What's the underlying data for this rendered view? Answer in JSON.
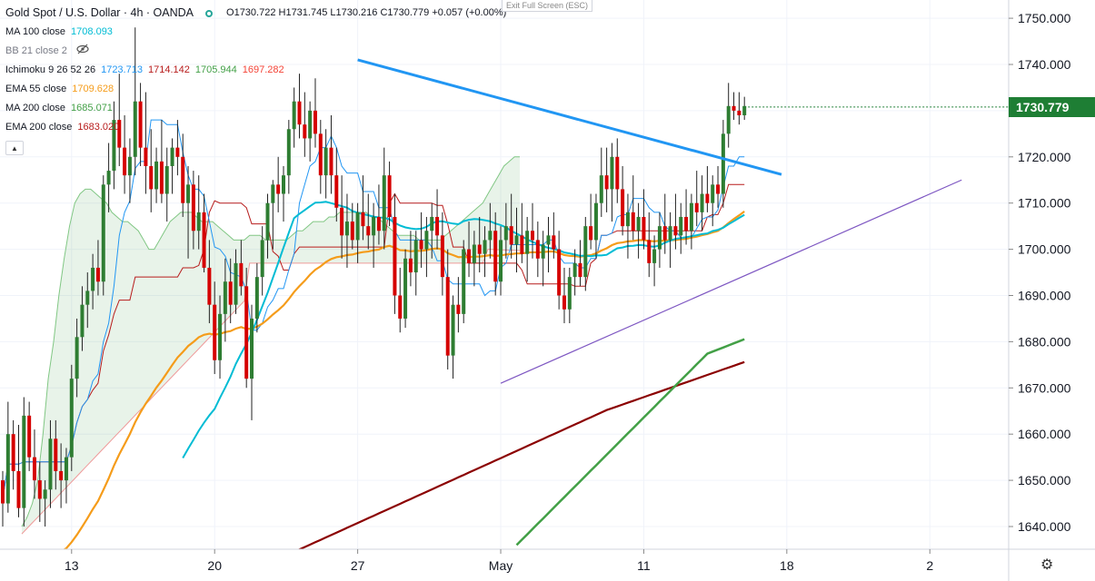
{
  "header": {
    "title": "Gold Spot / U.S. Dollar · 4h · OANDA",
    "ohlc": "O1730.722 H1731.745 L1730.216 C1730.779 +0.057 (+0.00%)",
    "exit_fullscreen": "Exit Full Screen (ESC)"
  },
  "indicators": [
    {
      "label": "MA 100 close",
      "value": "1708.093",
      "color": "#00bcd4"
    },
    {
      "label": "BB 21 close 2",
      "value": "",
      "color": "#787b86"
    },
    {
      "label": "Ichimoku 9 26 52 26",
      "values": [
        "1723.713",
        "1714.142",
        "1705.944",
        "1697.282"
      ],
      "colors": [
        "#2196f3",
        "#b71c1c",
        "#43a047",
        "#f44336"
      ]
    },
    {
      "label": "EMA 55 close",
      "value": "1709.628",
      "color": "#f59c1a"
    },
    {
      "label": "MA 200 close",
      "value": "1685.071",
      "color": "#43a047"
    },
    {
      "label": "EMA 200 close",
      "value": "1683.020",
      "color": "#b71c1c"
    }
  ],
  "last_price": "1730.779",
  "icons": {
    "visibility": "eye-off-icon",
    "settings": "gear-icon",
    "collapse": "chevron-up-icon",
    "status": "status-dot-icon"
  },
  "chart_data": {
    "type": "candlestick",
    "symbol": "XAUUSD",
    "timeframe": "4h",
    "ylim": [
      1633,
      1753
    ],
    "y_ticks": [
      "1640.000",
      "1650.000",
      "1660.000",
      "1670.000",
      "1680.000",
      "1690.000",
      "1700.000",
      "1710.000",
      "1720.000",
      "1730.000",
      "1740.000",
      "1750.000"
    ],
    "x_ticks": [
      {
        "label": "13",
        "bar": 13
      },
      {
        "label": "20",
        "bar": 40
      },
      {
        "label": "27",
        "bar": 67
      },
      {
        "label": "May",
        "bar": 94
      },
      {
        "label": "11",
        "bar": 121
      },
      {
        "label": "18",
        "bar": 148
      },
      {
        "label": "2",
        "bar": 175
      }
    ],
    "candles": [
      [
        1650,
        1652,
        1640,
        1645
      ],
      [
        1645,
        1667,
        1643,
        1660
      ],
      [
        1660,
        1663,
        1648,
        1652
      ],
      [
        1652,
        1662,
        1642,
        1644
      ],
      [
        1644,
        1668,
        1640,
        1664
      ],
      [
        1664,
        1667,
        1652,
        1655
      ],
      [
        1655,
        1661,
        1646,
        1650
      ],
      [
        1650,
        1654,
        1641,
        1646
      ],
      [
        1646,
        1650,
        1640,
        1648
      ],
      [
        1648,
        1663,
        1644,
        1659
      ],
      [
        1659,
        1663,
        1648,
        1652
      ],
      [
        1652,
        1658,
        1644,
        1650
      ],
      [
        1650,
        1657,
        1645,
        1655
      ],
      [
        1655,
        1675,
        1652,
        1672
      ],
      [
        1672,
        1685,
        1668,
        1681
      ],
      [
        1681,
        1692,
        1678,
        1688
      ],
      [
        1688,
        1695,
        1683,
        1691
      ],
      [
        1691,
        1699,
        1687,
        1696
      ],
      [
        1696,
        1702,
        1690,
        1693
      ],
      [
        1693,
        1716,
        1690,
        1714
      ],
      [
        1714,
        1723,
        1708,
        1717
      ],
      [
        1717,
        1732,
        1713,
        1728
      ],
      [
        1728,
        1738,
        1718,
        1722
      ],
      [
        1722,
        1729,
        1712,
        1716
      ],
      [
        1716,
        1724,
        1710,
        1720
      ],
      [
        1720,
        1748,
        1716,
        1732
      ],
      [
        1732,
        1736,
        1718,
        1722
      ],
      [
        1722,
        1734,
        1712,
        1718
      ],
      [
        1718,
        1726,
        1708,
        1713
      ],
      [
        1713,
        1722,
        1710,
        1719
      ],
      [
        1719,
        1728,
        1710,
        1712
      ],
      [
        1712,
        1722,
        1706,
        1718
      ],
      [
        1718,
        1724,
        1712,
        1722
      ],
      [
        1722,
        1728,
        1716,
        1720
      ],
      [
        1720,
        1725,
        1707,
        1710
      ],
      [
        1710,
        1718,
        1698,
        1714
      ],
      [
        1714,
        1717,
        1700,
        1704
      ],
      [
        1704,
        1716,
        1700,
        1708
      ],
      [
        1708,
        1712,
        1695,
        1696
      ],
      [
        1696,
        1702,
        1684,
        1688
      ],
      [
        1688,
        1693,
        1673,
        1676
      ],
      [
        1676,
        1690,
        1672,
        1686
      ],
      [
        1686,
        1698,
        1680,
        1693
      ],
      [
        1693,
        1698,
        1684,
        1688
      ],
      [
        1688,
        1700,
        1686,
        1697
      ],
      [
        1697,
        1702,
        1690,
        1692
      ],
      [
        1692,
        1696,
        1670,
        1672
      ],
      [
        1672,
        1688,
        1663,
        1685
      ],
      [
        1685,
        1697,
        1682,
        1694
      ],
      [
        1694,
        1705,
        1690,
        1702
      ],
      [
        1702,
        1712,
        1698,
        1710
      ],
      [
        1710,
        1715,
        1700,
        1714
      ],
      [
        1714,
        1720,
        1708,
        1712
      ],
      [
        1712,
        1718,
        1706,
        1716
      ],
      [
        1716,
        1728,
        1712,
        1726
      ],
      [
        1726,
        1735,
        1722,
        1732
      ],
      [
        1732,
        1738,
        1724,
        1727
      ],
      [
        1727,
        1734,
        1720,
        1724
      ],
      [
        1724,
        1732,
        1719,
        1730
      ],
      [
        1730,
        1737,
        1722,
        1725
      ],
      [
        1725,
        1728,
        1712,
        1716
      ],
      [
        1716,
        1726,
        1711,
        1722
      ],
      [
        1722,
        1729,
        1712,
        1716
      ],
      [
        1716,
        1722,
        1706,
        1709
      ],
      [
        1709,
        1716,
        1698,
        1703
      ],
      [
        1703,
        1712,
        1696,
        1706
      ],
      [
        1706,
        1710,
        1700,
        1702
      ],
      [
        1702,
        1710,
        1697,
        1708
      ],
      [
        1708,
        1716,
        1702,
        1705
      ],
      [
        1705,
        1712,
        1700,
        1703
      ],
      [
        1703,
        1710,
        1696,
        1707
      ],
      [
        1707,
        1714,
        1701,
        1704
      ],
      [
        1704,
        1722,
        1700,
        1716
      ],
      [
        1716,
        1719,
        1705,
        1707
      ],
      [
        1707,
        1712,
        1686,
        1690
      ],
      [
        1690,
        1696,
        1682,
        1685
      ],
      [
        1685,
        1700,
        1683,
        1698
      ],
      [
        1698,
        1704,
        1692,
        1695
      ],
      [
        1695,
        1704,
        1690,
        1702
      ],
      [
        1702,
        1708,
        1696,
        1700
      ],
      [
        1700,
        1707,
        1694,
        1704
      ],
      [
        1704,
        1710,
        1698,
        1707
      ],
      [
        1707,
        1713,
        1700,
        1703
      ],
      [
        1703,
        1708,
        1690,
        1694
      ],
      [
        1694,
        1700,
        1674,
        1677
      ],
      [
        1677,
        1690,
        1672,
        1688
      ],
      [
        1688,
        1694,
        1682,
        1686
      ],
      [
        1686,
        1702,
        1684,
        1700
      ],
      [
        1700,
        1706,
        1694,
        1697
      ],
      [
        1697,
        1704,
        1692,
        1701
      ],
      [
        1701,
        1707,
        1695,
        1699
      ],
      [
        1699,
        1705,
        1694,
        1702
      ],
      [
        1702,
        1710,
        1698,
        1704
      ],
      [
        1704,
        1708,
        1690,
        1693
      ],
      [
        1693,
        1705,
        1690,
        1702
      ],
      [
        1702,
        1710,
        1698,
        1705
      ],
      [
        1705,
        1712,
        1698,
        1701
      ],
      [
        1701,
        1709,
        1695,
        1703
      ],
      [
        1703,
        1710,
        1697,
        1699
      ],
      [
        1699,
        1707,
        1693,
        1704
      ],
      [
        1704,
        1710,
        1698,
        1702
      ],
      [
        1702,
        1706,
        1694,
        1698
      ],
      [
        1698,
        1704,
        1692,
        1701
      ],
      [
        1701,
        1707,
        1695,
        1703
      ],
      [
        1703,
        1708,
        1698,
        1700
      ],
      [
        1700,
        1704,
        1687,
        1690
      ],
      [
        1690,
        1696,
        1684,
        1687
      ],
      [
        1687,
        1696,
        1684,
        1694
      ],
      [
        1694,
        1700,
        1690,
        1697
      ],
      [
        1697,
        1702,
        1692,
        1694
      ],
      [
        1694,
        1707,
        1691,
        1705
      ],
      [
        1705,
        1712,
        1700,
        1702
      ],
      [
        1702,
        1712,
        1698,
        1710
      ],
      [
        1710,
        1722,
        1707,
        1716
      ],
      [
        1716,
        1722,
        1708,
        1713
      ],
      [
        1713,
        1723,
        1706,
        1720
      ],
      [
        1720,
        1724,
        1710,
        1713
      ],
      [
        1713,
        1718,
        1703,
        1705
      ],
      [
        1705,
        1712,
        1698,
        1708
      ],
      [
        1708,
        1716,
        1702,
        1704
      ],
      [
        1704,
        1710,
        1698,
        1707
      ],
      [
        1707,
        1713,
        1700,
        1702
      ],
      [
        1702,
        1708,
        1694,
        1697
      ],
      [
        1697,
        1703,
        1692,
        1700
      ],
      [
        1700,
        1708,
        1696,
        1705
      ],
      [
        1705,
        1712,
        1699,
        1702
      ],
      [
        1702,
        1708,
        1696,
        1705
      ],
      [
        1705,
        1712,
        1700,
        1703
      ],
      [
        1703,
        1710,
        1699,
        1707
      ],
      [
        1707,
        1713,
        1701,
        1704
      ],
      [
        1704,
        1712,
        1700,
        1710
      ],
      [
        1710,
        1717,
        1705,
        1708
      ],
      [
        1708,
        1716,
        1704,
        1712
      ],
      [
        1712,
        1718,
        1708,
        1710
      ],
      [
        1710,
        1716,
        1705,
        1714
      ],
      [
        1714,
        1718,
        1709,
        1712
      ],
      [
        1712,
        1728,
        1709,
        1725
      ],
      [
        1725,
        1736,
        1722,
        1731
      ],
      [
        1731,
        1734,
        1728,
        1730
      ],
      [
        1730,
        1734,
        1727,
        1729
      ],
      [
        1729,
        1733,
        1728,
        1731
      ]
    ],
    "ichimoku_cloud": {
      "span_a_start": 2,
      "span_a": [
        1640,
        1642,
        1645,
        1650,
        1660,
        1672,
        1680,
        1690,
        1698,
        1705,
        1710,
        1712,
        1713,
        1713,
        1712,
        1711,
        1710,
        1708,
        1707,
        1706,
        1706,
        1705,
        1704,
        1702,
        1700,
        1700,
        1702,
        1704,
        1706,
        1707,
        1708,
        1708,
        1708,
        1707,
        1706,
        1706,
        1706,
        1705,
        1704,
        1703,
        1702,
        1702,
        1702,
        1703,
        1703,
        1703,
        1702,
        1702,
        1702,
        1702,
        1702,
        1703,
        1704,
        1704,
        1705,
        1706,
        1706,
        1706,
        1707,
        1707,
        1708,
        1708,
        1708,
        1708,
        1708,
        1708,
        1707,
        1707,
        1706,
        1705,
        1704,
        1703,
        1703,
        1703,
        1703,
        1702,
        1702,
        1702,
        1702,
        1702,
        1703,
        1704,
        1705,
        1706,
        1707,
        1708,
        1709,
        1710,
        1712,
        1714,
        1716,
        1718,
        1719,
        1720,
        1720
      ]
    },
    "series": [
      {
        "name": "EMA 55 close",
        "color": "#f59c1a"
      },
      {
        "name": "MA 100 close",
        "color": "#00bcd4"
      },
      {
        "name": "MA 200 close",
        "color": "#43a047"
      },
      {
        "name": "EMA 200 close",
        "color": "#b71c1c"
      }
    ],
    "trendlines": [
      {
        "color": "#2196f3",
        "from": [
          67,
          1741
        ],
        "to": [
          147,
          1716.2
        ]
      },
      {
        "color": "#7e57c2",
        "from": [
          94,
          1671
        ],
        "to": [
          181,
          1715
        ]
      }
    ]
  }
}
